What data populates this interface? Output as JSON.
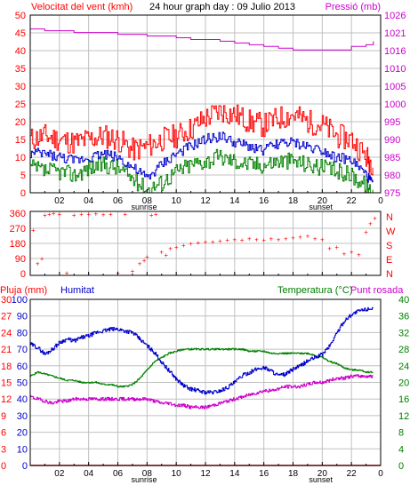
{
  "header": {
    "left": "Velocitat del vent (kmh)",
    "center": "24 hour graph day : 09 Julio 2013",
    "right": "Pressió (mb)"
  },
  "colors": {
    "background": "#ffffff",
    "grid": "#c0c0c0",
    "border": "#000000",
    "gust": "#ff0000",
    "wind": "#0000cc",
    "wind_low": "#008000",
    "pressure": "#cc00cc",
    "direction": "#ff0000",
    "rain": "#ff0000",
    "humidity": "#0000cc",
    "temperature": "#008000",
    "dewpoint": "#cc00cc"
  },
  "x_ticks": [
    "02",
    "04",
    "06",
    "08",
    "10",
    "12",
    "14",
    "16",
    "18",
    "20",
    "22",
    "0"
  ],
  "sunrise_label": "sunrise",
  "sunset_label": "sunset",
  "bottom_header": {
    "rain": "Pluja (mm)",
    "humidity": "Humitat",
    "temp_dew": "Temperatura (°C)",
    "dew": "Punt rosada"
  },
  "chart_data": [
    {
      "type": "line",
      "title": "24 hour graph day : 09 Julio 2013",
      "x_unit": "hour",
      "xlim": [
        0,
        24
      ],
      "y_left": {
        "label": "Velocitat del vent (kmh)",
        "ticks": [
          "0",
          "5",
          "10",
          "15",
          "20",
          "25",
          "30",
          "35",
          "40",
          "45",
          "50"
        ],
        "ylim": [
          0,
          50
        ]
      },
      "y_right": {
        "label": "Pressió (mb)",
        "ticks": [
          "975",
          "980",
          "985",
          "990",
          "995",
          "1000",
          "1005",
          "1010",
          "1016",
          "1021",
          "1026"
        ],
        "ylim": [
          975,
          1026
        ]
      },
      "series": [
        {
          "axis": "right",
          "color": "#cc00cc",
          "x": [
            0,
            1,
            2,
            3,
            4,
            5,
            6,
            7,
            8,
            9,
            10,
            11,
            12,
            13,
            14,
            15,
            16,
            17,
            18,
            19,
            20,
            21,
            22,
            23,
            23.5
          ],
          "values": [
            1022,
            1021.5,
            1021.5,
            1021,
            1021,
            1021,
            1020.5,
            1020.5,
            1020,
            1020,
            1019.5,
            1019,
            1019,
            1018.5,
            1018,
            1017.5,
            1017,
            1016.5,
            1016,
            1016,
            1016,
            1016,
            1017,
            1017.5,
            1018.5
          ]
        },
        {
          "axis": "left",
          "color": "#ff0000",
          "x": [
            0,
            1,
            2,
            3,
            4,
            5,
            6,
            7,
            8,
            9,
            10,
            11,
            12,
            13,
            14,
            15,
            16,
            17,
            18,
            19,
            20,
            21,
            22,
            23,
            23.5
          ],
          "values": [
            15,
            16,
            15,
            14,
            15,
            16,
            15,
            12,
            13,
            15,
            16,
            18,
            21,
            23,
            22,
            20,
            19,
            21,
            22,
            20,
            19,
            16,
            15,
            10,
            8
          ]
        },
        {
          "axis": "left",
          "color": "#0000cc",
          "x": [
            0,
            1,
            2,
            3,
            4,
            5,
            6,
            7,
            8,
            9,
            10,
            11,
            12,
            13,
            14,
            15,
            16,
            17,
            18,
            19,
            20,
            21,
            22,
            23,
            23.5
          ],
          "values": [
            11,
            11,
            10,
            9,
            10,
            11,
            10,
            7,
            4,
            8,
            11,
            13,
            15,
            16,
            14,
            13,
            12,
            14,
            14,
            13,
            12,
            10,
            9,
            5,
            2
          ]
        },
        {
          "axis": "left",
          "color": "#008000",
          "x": [
            0,
            1,
            2,
            3,
            4,
            5,
            6,
            7,
            8,
            9,
            10,
            11,
            12,
            13,
            14,
            15,
            16,
            17,
            18,
            19,
            20,
            21,
            22,
            23,
            23.5
          ],
          "values": [
            7,
            6,
            6,
            5,
            7,
            8,
            7,
            4,
            1,
            3,
            6,
            8,
            9,
            10,
            9,
            8,
            8,
            9,
            9,
            8,
            7,
            6,
            5,
            2,
            0
          ]
        }
      ]
    },
    {
      "type": "scatter",
      "x_unit": "hour",
      "xlim": [
        0,
        24
      ],
      "y_left": {
        "ticks": [
          "0",
          "90",
          "180",
          "270",
          "360"
        ],
        "ylim": [
          0,
          360
        ]
      },
      "y_right": {
        "ticks": [
          "N",
          "E",
          "S",
          "W",
          "N"
        ]
      },
      "series": [
        {
          "color": "#ff0000",
          "x": [
            0.2,
            0.5,
            0.8,
            1,
            1.3,
            1.6,
            2,
            2.5,
            3,
            3.5,
            4,
            4.5,
            5,
            5.5,
            6,
            6.5,
            7,
            7.5,
            7.8,
            8,
            8.3,
            8.6,
            9,
            9.3,
            9.6,
            10,
            10.5,
            11,
            11.5,
            12,
            12.5,
            13,
            13.5,
            14,
            14.5,
            15,
            15.5,
            16,
            16.5,
            17,
            17.5,
            18,
            18.5,
            19,
            19.5,
            20,
            20.5,
            21,
            21.5,
            22,
            22.5,
            23,
            23.3,
            23.6
          ],
          "values": [
            260,
            60,
            90,
            350,
            355,
            360,
            355,
            5,
            350,
            355,
            355,
            358,
            352,
            355,
            5,
            355,
            15,
            60,
            80,
            100,
            350,
            355,
            130,
            110,
            150,
            160,
            170,
            180,
            185,
            190,
            190,
            195,
            200,
            205,
            200,
            210,
            205,
            200,
            210,
            205,
            210,
            215,
            220,
            225,
            210,
            205,
            150,
            160,
            120,
            130,
            115,
            250,
            300,
            330
          ]
        }
      ]
    },
    {
      "type": "line",
      "x_unit": "hour",
      "xlim": [
        0,
        24
      ],
      "y_rain": {
        "label": "Pluja (mm)",
        "ticks": [
          "0",
          "3",
          "6",
          "9",
          "12",
          "15",
          "18",
          "21",
          "24",
          "27",
          "30"
        ],
        "ylim": [
          0,
          30
        ]
      },
      "y_humidity": {
        "label": "Humitat",
        "ticks": [
          "0",
          "10",
          "20",
          "30",
          "40",
          "50",
          "60",
          "70",
          "80",
          "90",
          "100"
        ],
        "ylim": [
          0,
          100
        ]
      },
      "y_temp": {
        "label": "Temperatura (°C)",
        "ticks": [
          "0",
          "4",
          "8",
          "12",
          "16",
          "20",
          "24",
          "28",
          "32",
          "36",
          "40"
        ],
        "ylim": [
          0,
          40
        ]
      },
      "series": [
        {
          "name": "Pluja (mm)",
          "axis": "rain",
          "color": "#ff0000",
          "x": [
            0,
            24
          ],
          "values": [
            0,
            0
          ]
        },
        {
          "name": "Humitat",
          "axis": "humidity",
          "color": "#0000cc",
          "x": [
            0,
            0.5,
            1,
            1.5,
            2,
            2.5,
            3,
            3.5,
            4,
            4.5,
            5,
            5.5,
            6,
            6.5,
            7,
            7.5,
            8,
            8.5,
            9,
            9.5,
            10,
            10.5,
            11,
            11.5,
            12,
            12.5,
            13,
            13.5,
            14,
            14.5,
            15,
            15.5,
            16,
            16.5,
            17,
            17.5,
            18,
            18.5,
            19,
            19.5,
            20,
            20.5,
            21,
            21.5,
            22,
            22.5,
            23,
            23.5
          ],
          "values": [
            73,
            71,
            67,
            70,
            74,
            76,
            75,
            77,
            78,
            80,
            81,
            82,
            82,
            81,
            80,
            76,
            72,
            68,
            62,
            57,
            52,
            48,
            46,
            45,
            44,
            44,
            45,
            47,
            50,
            54,
            56,
            58,
            59,
            57,
            54,
            55,
            58,
            60,
            63,
            65,
            67,
            72,
            80,
            87,
            91,
            93,
            94,
            95
          ]
        },
        {
          "name": "Temperatura (°C)",
          "axis": "temp",
          "color": "#008000",
          "x": [
            0,
            0.5,
            1,
            1.5,
            2,
            2.5,
            3,
            3.5,
            4,
            4.5,
            5,
            5.5,
            6,
            6.5,
            7,
            7.5,
            8,
            8.5,
            9,
            9.5,
            10,
            10.5,
            11,
            11.5,
            12,
            12.5,
            13,
            13.5,
            14,
            14.5,
            15,
            15.5,
            16,
            16.5,
            17,
            17.5,
            18,
            18.5,
            19,
            19.5,
            20,
            20.5,
            21,
            21.5,
            22,
            22.5,
            23,
            23.5
          ],
          "values": [
            21.5,
            22.5,
            22,
            21.5,
            21,
            20.5,
            20.5,
            20,
            20,
            20,
            19.5,
            19.5,
            19,
            19,
            19.5,
            21,
            23,
            25,
            26,
            27,
            27.5,
            28,
            28,
            28,
            28,
            28,
            28,
            28,
            28,
            28,
            27.5,
            27.5,
            27.5,
            27,
            27,
            27,
            27,
            27,
            27,
            26.5,
            26,
            25,
            24.5,
            23.5,
            23,
            23,
            22.5,
            22.5
          ]
        },
        {
          "name": "Punt rosada",
          "axis": "temp",
          "color": "#cc00cc",
          "x": [
            0,
            0.5,
            1,
            1.5,
            2,
            2.5,
            3,
            3.5,
            4,
            4.5,
            5,
            5.5,
            6,
            6.5,
            7,
            7.5,
            8,
            8.5,
            9,
            9.5,
            10,
            10.5,
            11,
            11.5,
            12,
            12.5,
            13,
            13.5,
            14,
            14.5,
            15,
            15.5,
            16,
            16.5,
            17,
            17.5,
            18,
            18.5,
            19,
            19.5,
            20,
            20.5,
            21,
            21.5,
            22,
            22.5,
            23,
            23.5
          ],
          "values": [
            16.5,
            16,
            15.5,
            15,
            15.5,
            15.5,
            16,
            16,
            16,
            16,
            16,
            16,
            16,
            16,
            16,
            16,
            16,
            15.5,
            15,
            15,
            14.5,
            14.5,
            14,
            14,
            14,
            14.5,
            15,
            15.5,
            16,
            16.5,
            17,
            17.5,
            18,
            18,
            18.5,
            19,
            19,
            19,
            19.5,
            20,
            20,
            20.5,
            21,
            21,
            21.5,
            21.5,
            21.5,
            21.5
          ]
        }
      ]
    }
  ]
}
